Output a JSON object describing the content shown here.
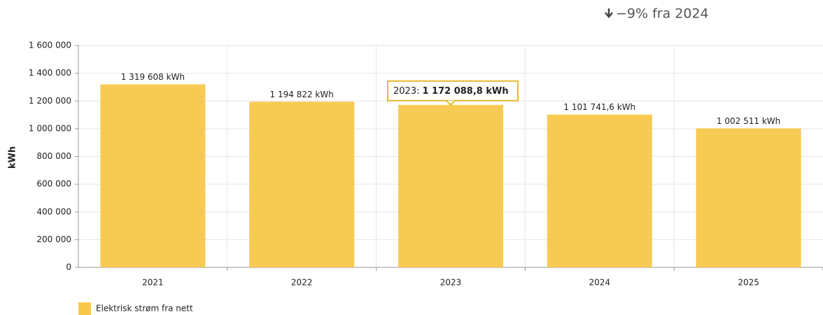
{
  "chart_data": {
    "type": "bar",
    "annotation": "−9% fra 2024",
    "y_axis_label": "kWh",
    "categories": [
      "2021",
      "2022",
      "2023",
      "2024",
      "2025"
    ],
    "series": [
      {
        "name": "Elektrisk strøm fra nett",
        "color": "#f7c84a",
        "values": [
          1319608,
          1194822,
          1172088.8,
          1101741.6,
          1002511
        ],
        "value_labels": [
          "1 319 608 kWh",
          "1 194 822 kWh",
          "1 172 088,8 kWh",
          "1 101 741,6 kWh",
          "1 002 511 kWh"
        ]
      }
    ],
    "tooltip": {
      "prefix": "2023:",
      "point": 2
    },
    "ylim": [
      0,
      1600000
    ],
    "yticks": [
      0,
      {
        "value": 200000,
        "label": "200 000"
      },
      {
        "value": 400000,
        "label": "400 000"
      },
      {
        "value": 600000,
        "label": "600 000"
      },
      {
        "value": 800000,
        "label": "800 000"
      },
      {
        "value": 1000000,
        "label": "1 000 000"
      },
      {
        "value": 1200000,
        "label": "1 200 000"
      },
      {
        "value": 1400000,
        "label": "1 400 000"
      },
      {
        "value": 1600000,
        "label": "1 600 000"
      }
    ],
    "grid": true
  }
}
